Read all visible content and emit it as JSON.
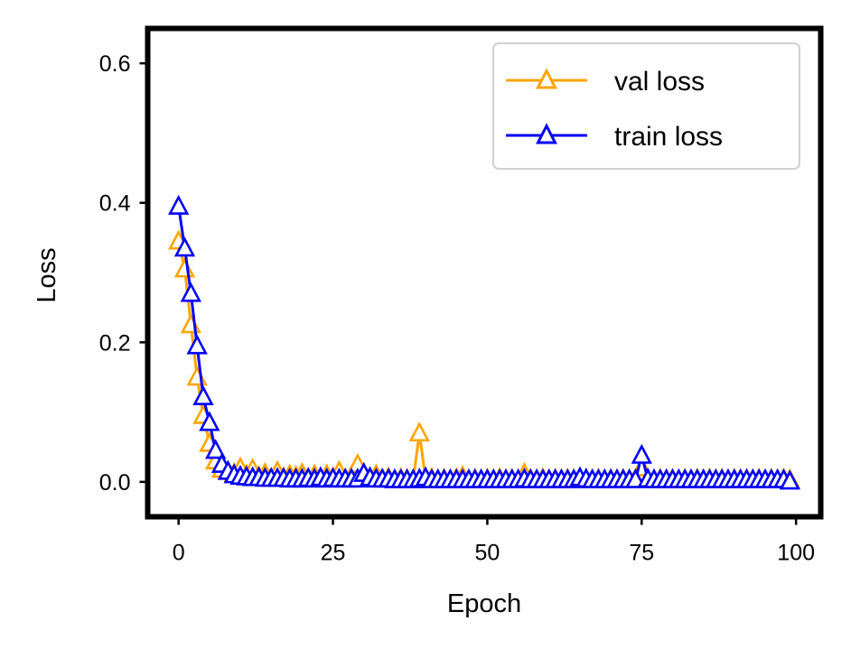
{
  "chart_data": {
    "type": "line",
    "xlabel": "Epoch",
    "ylabel": "Loss",
    "xlim": [
      -5,
      104
    ],
    "ylim": [
      -0.05,
      0.65
    ],
    "xticks": [
      0,
      25,
      50,
      75,
      100
    ],
    "yticks": [
      0.0,
      0.2,
      0.4,
      0.6
    ],
    "xtick_labels": [
      "0",
      "25",
      "50",
      "75",
      "100"
    ],
    "ytick_labels": [
      "0.0",
      "0.2",
      "0.4",
      "0.6"
    ],
    "grid": false,
    "legend": "top-right",
    "marker": "hollow-triangle",
    "series": [
      {
        "name": "val loss",
        "color": "#FFA500",
        "x": [
          0,
          1,
          2,
          3,
          4,
          5,
          6,
          7,
          8,
          9,
          10,
          11,
          12,
          13,
          14,
          15,
          16,
          17,
          18,
          19,
          20,
          21,
          22,
          23,
          24,
          25,
          26,
          27,
          28,
          29,
          30,
          31,
          32,
          33,
          34,
          35,
          36,
          37,
          38,
          39,
          40,
          41,
          42,
          43,
          44,
          45,
          46,
          47,
          48,
          49,
          50,
          51,
          52,
          53,
          54,
          55,
          56,
          57,
          58,
          59,
          60,
          61,
          62,
          63,
          64,
          65,
          66,
          67,
          68,
          69,
          70,
          71,
          72,
          73,
          74,
          75,
          76,
          77,
          78,
          79,
          80,
          81,
          82,
          83,
          84,
          85,
          86,
          87,
          88,
          89,
          90,
          91,
          92,
          93,
          94,
          95,
          96,
          97,
          98,
          99
        ],
        "values": [
          0.345,
          0.305,
          0.225,
          0.15,
          0.095,
          0.055,
          0.03,
          0.018,
          0.015,
          0.012,
          0.02,
          0.01,
          0.018,
          0.008,
          0.012,
          0.005,
          0.015,
          0.006,
          0.01,
          0.008,
          0.012,
          0.005,
          0.01,
          0.004,
          0.01,
          0.006,
          0.015,
          0.004,
          0.008,
          0.025,
          0.012,
          0.005,
          0.01,
          0.004,
          0.006,
          0.003,
          0.005,
          0.004,
          0.003,
          0.07,
          0.004,
          0.005,
          0.003,
          0.004,
          0.003,
          0.005,
          0.008,
          0.003,
          0.004,
          0.003,
          0.004,
          0.003,
          0.005,
          0.003,
          0.004,
          0.003,
          0.012,
          0.004,
          0.003,
          0.005,
          0.003,
          0.004,
          0.003,
          0.004,
          0.003,
          0.005,
          0.004,
          0.003,
          0.004,
          0.003,
          0.004,
          0.003,
          0.004,
          0.003,
          0.004,
          0.02,
          0.004,
          0.003,
          0.004,
          0.003,
          0.004,
          0.003,
          0.004,
          0.003,
          0.004,
          0.003,
          0.004,
          0.003,
          0.004,
          0.003,
          0.004,
          0.003,
          0.004,
          0.003,
          0.004,
          0.003,
          0.004,
          0.003,
          0.004,
          0.003
        ]
      },
      {
        "name": "train loss",
        "color": "#0000FF",
        "x": [
          0,
          1,
          2,
          3,
          4,
          5,
          6,
          7,
          8,
          9,
          10,
          11,
          12,
          13,
          14,
          15,
          16,
          17,
          18,
          19,
          20,
          21,
          22,
          23,
          24,
          25,
          26,
          27,
          28,
          29,
          30,
          31,
          32,
          33,
          34,
          35,
          36,
          37,
          38,
          39,
          40,
          41,
          42,
          43,
          44,
          45,
          46,
          47,
          48,
          49,
          50,
          51,
          52,
          53,
          54,
          55,
          56,
          57,
          58,
          59,
          60,
          61,
          62,
          63,
          64,
          65,
          66,
          67,
          68,
          69,
          70,
          71,
          72,
          73,
          74,
          75,
          76,
          77,
          78,
          79,
          80,
          81,
          82,
          83,
          84,
          85,
          86,
          87,
          88,
          89,
          90,
          91,
          92,
          93,
          94,
          95,
          96,
          97,
          98,
          99
        ],
        "values": [
          0.395,
          0.335,
          0.27,
          0.195,
          0.122,
          0.085,
          0.045,
          0.025,
          0.015,
          0.01,
          0.008,
          0.007,
          0.006,
          0.006,
          0.005,
          0.005,
          0.005,
          0.005,
          0.004,
          0.004,
          0.004,
          0.005,
          0.004,
          0.006,
          0.004,
          0.005,
          0.004,
          0.004,
          0.004,
          0.004,
          0.012,
          0.006,
          0.004,
          0.004,
          0.004,
          0.003,
          0.003,
          0.003,
          0.003,
          0.004,
          0.006,
          0.003,
          0.003,
          0.003,
          0.003,
          0.003,
          0.003,
          0.003,
          0.003,
          0.003,
          0.003,
          0.003,
          0.003,
          0.003,
          0.003,
          0.003,
          0.004,
          0.003,
          0.003,
          0.003,
          0.003,
          0.003,
          0.003,
          0.003,
          0.003,
          0.006,
          0.004,
          0.003,
          0.003,
          0.003,
          0.003,
          0.003,
          0.003,
          0.003,
          0.003,
          0.038,
          0.004,
          0.003,
          0.003,
          0.003,
          0.003,
          0.003,
          0.003,
          0.003,
          0.003,
          0.003,
          0.003,
          0.003,
          0.003,
          0.003,
          0.003,
          0.003,
          0.003,
          0.003,
          0.003,
          0.003,
          0.003,
          0.003,
          0.003,
          0.001
        ]
      }
    ]
  }
}
